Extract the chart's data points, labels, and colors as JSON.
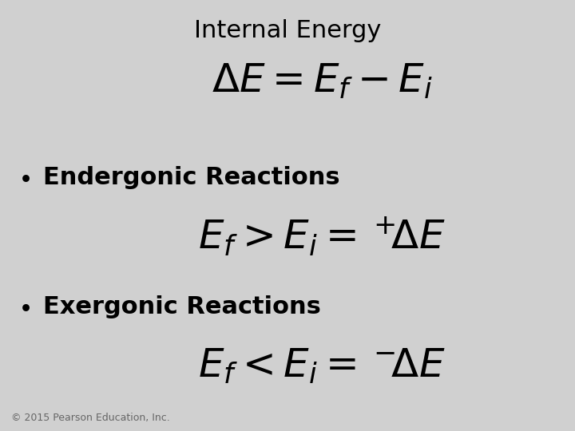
{
  "title": "Internal Energy",
  "bg_color": "#d0d0d0",
  "title_color": "#000000",
  "title_fontsize": 22,
  "bullet_color": "#000000",
  "bullet_fontsize": 22,
  "formula_fontsize": 36,
  "copyright": "© 2015 Pearson Education, Inc.",
  "copyright_fontsize": 9,
  "bullet1": "Endergonic Reactions",
  "bullet2": "Exergonic Reactions"
}
